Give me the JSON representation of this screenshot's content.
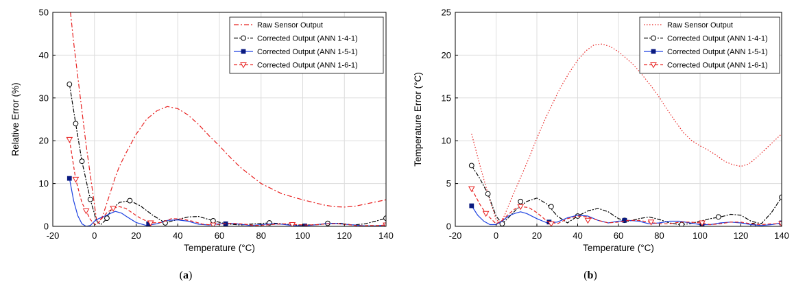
{
  "figure": {
    "panels": [
      {
        "caption_open": "(",
        "caption_letter": "a",
        "caption_close": ")"
      },
      {
        "caption_open": "(",
        "caption_letter": "b",
        "caption_close": ")"
      }
    ]
  },
  "chart_data": [
    {
      "type": "line",
      "xlabel": "Temperature (°C)",
      "ylabel": "Relative Error (%)",
      "xlim": [
        -20,
        140
      ],
      "ylim": [
        0,
        50
      ],
      "xticks": [
        -20,
        0,
        20,
        40,
        60,
        80,
        100,
        120,
        140
      ],
      "yticks": [
        0,
        10,
        20,
        30,
        40,
        50
      ],
      "grid": true,
      "legend_position": "top-right",
      "series": [
        {
          "name": "Raw Sensor Output",
          "color": "#e8201f",
          "dash": "7,3,2,3",
          "marker": "none",
          "x": [
            -11.5,
            -10,
            -8,
            -6,
            -4,
            -2,
            0,
            1,
            2,
            4,
            6,
            8,
            10,
            12,
            15,
            20,
            25,
            30,
            35,
            40,
            45,
            50,
            55,
            60,
            65,
            70,
            80,
            90,
            100,
            110,
            115,
            120,
            125,
            130,
            135,
            140
          ],
          "y": [
            50,
            43,
            35,
            27,
            19,
            12,
            5,
            1.5,
            0.8,
            2.5,
            5.5,
            8.5,
            11.5,
            14,
            17,
            21.5,
            25,
            27,
            28,
            27.5,
            26,
            23.8,
            21.2,
            18.8,
            16.2,
            13.8,
            10,
            7.6,
            6.2,
            5,
            4.6,
            4.5,
            4.7,
            5.2,
            5.7,
            6.2
          ],
          "markers_x": [],
          "markers_y": []
        },
        {
          "name": "Corrected Output (ANN 1-4-1)",
          "color": "#000000",
          "dash": "6,2,2,2",
          "marker": "circle",
          "x": [
            -12,
            -9,
            -6,
            -2,
            1,
            3,
            5,
            8,
            12,
            17,
            22,
            28,
            34,
            40,
            45,
            50,
            57,
            63,
            70,
            77,
            84,
            90,
            96,
            102,
            108,
            112,
            118,
            124,
            130,
            135,
            140
          ],
          "y": [
            33.2,
            24,
            15.2,
            6.3,
            1.2,
            0.4,
            1.3,
            3.8,
            5.6,
            6,
            4.8,
            2.6,
            0.8,
            1.6,
            2.2,
            2.3,
            1.3,
            0.6,
            0.3,
            0.6,
            0.8,
            0.6,
            0.3,
            0.3,
            0.4,
            0.7,
            0.7,
            0.3,
            0.6,
            1.2,
            1.9
          ],
          "markers_x": [
            -12,
            -9,
            -6,
            -2,
            6,
            17,
            34,
            57,
            84,
            112,
            140
          ],
          "markers_y": [
            33.2,
            24,
            15.2,
            6.3,
            1.9,
            6,
            0.8,
            1.3,
            0.8,
            0.7,
            1.9
          ]
        },
        {
          "name": "Corrected Output (ANN 1-5-1)",
          "color": "#1a3fe0",
          "dash": "",
          "marker": "square",
          "x": [
            -12,
            -10,
            -8,
            -6,
            -4,
            -2,
            0,
            2,
            5,
            8,
            10,
            13,
            16,
            20,
            25,
            30,
            35,
            40,
            45,
            50,
            55,
            60,
            65,
            70,
            75,
            80,
            85,
            90,
            95,
            100,
            105,
            110,
            115,
            120,
            125,
            130,
            135,
            140
          ],
          "y": [
            11.2,
            6,
            2.5,
            0.6,
            0,
            0.2,
            1.2,
            1.8,
            2.4,
            3.1,
            3.5,
            3.1,
            2.1,
            0.9,
            0.2,
            0.6,
            1.4,
            1.5,
            1.2,
            0.5,
            0.3,
            0.6,
            0.7,
            0.5,
            0.2,
            0.4,
            0.6,
            0.5,
            0.2,
            0.1,
            0.3,
            0.6,
            0.7,
            0.5,
            0.3,
            0.1,
            0.1,
            0.3
          ],
          "markers_x": [
            -12,
            26,
            63,
            101,
            140
          ],
          "markers_y": [
            11.2,
            0.6,
            0.6,
            0.1,
            0.3
          ]
        },
        {
          "name": "Corrected Output (ANN 1-6-1)",
          "color": "#e8201f",
          "dash": "5,3",
          "marker": "triangle",
          "x": [
            -12,
            -9,
            -6,
            -4,
            -2,
            0,
            1,
            3,
            6,
            9,
            12,
            15,
            18,
            22,
            27,
            32,
            37,
            42,
            47,
            52,
            57,
            62,
            67,
            72,
            77,
            82,
            87,
            92,
            97,
            102,
            107,
            112,
            117,
            122,
            127,
            132,
            137,
            140
          ],
          "y": [
            20.3,
            11,
            5.5,
            3.6,
            1.6,
            0.5,
            0.4,
            1.5,
            3.2,
            4.2,
            4.6,
            4.2,
            3.2,
            1.9,
            0.8,
            0.9,
            1.8,
            1.7,
            1.2,
            0.5,
            0.3,
            0.6,
            0.7,
            0.5,
            0.2,
            0.3,
            0.5,
            0.6,
            0.4,
            0.3,
            0.4,
            0.6,
            0.6,
            0.4,
            0.1,
            0.2,
            0.2,
            0.3
          ],
          "markers_x": [
            -12,
            -9,
            -4,
            9,
            27,
            57,
            95,
            140
          ],
          "markers_y": [
            20.3,
            11,
            3.6,
            4.2,
            0.8,
            0.3,
            0.4,
            0.3
          ]
        }
      ]
    },
    {
      "type": "line",
      "xlabel": "Temperature (°C)",
      "ylabel": "Temperature Error (°C)",
      "xlim": [
        -20,
        140
      ],
      "ylim": [
        0,
        25
      ],
      "xticks": [
        -20,
        0,
        20,
        40,
        60,
        80,
        100,
        120,
        140
      ],
      "yticks": [
        0,
        5,
        10,
        15,
        20,
        25
      ],
      "grid": true,
      "legend_position": "top-right",
      "series": [
        {
          "name": "Raw Sensor Output",
          "color": "#e8201f",
          "dash": "1.5,2.5",
          "marker": "none",
          "x": [
            -12,
            -8,
            -4,
            0,
            2,
            4,
            8,
            12,
            16,
            20,
            24,
            28,
            32,
            36,
            40,
            44,
            48,
            52,
            56,
            60,
            64,
            68,
            72,
            76,
            80,
            84,
            88,
            92,
            96,
            100,
            104,
            108,
            112,
            116,
            120,
            124,
            128,
            132,
            136,
            140
          ],
          "y": [
            10.8,
            7.2,
            3.8,
            0.8,
            0.4,
            1.2,
            3.5,
            5.7,
            7.9,
            10.3,
            12.5,
            14.5,
            16.4,
            18,
            19.4,
            20.5,
            21.2,
            21.3,
            21,
            20.4,
            19.6,
            18.7,
            17.6,
            16.4,
            15.1,
            13.6,
            12.2,
            10.9,
            10,
            9.4,
            8.9,
            8.3,
            7.6,
            7.2,
            7,
            7.3,
            8.1,
            9,
            9.9,
            10.8
          ],
          "markers_x": [],
          "markers_y": []
        },
        {
          "name": "Corrected Output (ANN 1-4-1)",
          "color": "#000000",
          "dash": "6,2,2,2",
          "marker": "circle",
          "x": [
            -12,
            -8,
            -4,
            0,
            3,
            6,
            10,
            15,
            20,
            25,
            30,
            35,
            40,
            45,
            50,
            55,
            60,
            65,
            70,
            75,
            80,
            85,
            90,
            95,
            100,
            105,
            110,
            115,
            120,
            125,
            130,
            135,
            140
          ],
          "y": [
            7.1,
            5.6,
            3.8,
            1.2,
            0.3,
            1,
            2,
            2.9,
            3.3,
            2.6,
            1.2,
            0.4,
            1.2,
            1.8,
            2.1,
            1.7,
            0.9,
            0.6,
            0.9,
            1.1,
            0.8,
            0.4,
            0.2,
            0.3,
            0.6,
            0.9,
            1.1,
            1.4,
            1.3,
            0.6,
            0.3,
            1.6,
            3.4
          ],
          "markers_x": [
            -12,
            -4,
            3,
            12,
            27,
            40,
            63,
            91,
            109,
            126,
            140
          ],
          "markers_y": [
            7.1,
            3.8,
            0.3,
            2.9,
            2.3,
            1.2,
            0.7,
            0.2,
            1.1,
            0.1,
            3.4
          ]
        },
        {
          "name": "Corrected Output (ANN 1-5-1)",
          "color": "#1a3fe0",
          "dash": "",
          "marker": "square",
          "x": [
            -12,
            -9,
            -6,
            -3,
            0,
            3,
            6,
            9,
            12,
            15,
            20,
            25,
            30,
            35,
            40,
            45,
            50,
            55,
            60,
            65,
            70,
            75,
            80,
            85,
            90,
            95,
            100,
            105,
            110,
            115,
            120,
            125,
            130,
            135,
            140
          ],
          "y": [
            2.4,
            1.3,
            0.6,
            0.2,
            0.2,
            0.6,
            1.2,
            1.5,
            1.7,
            1.5,
            0.9,
            0.4,
            0.5,
            1,
            1.3,
            1.2,
            0.7,
            0.4,
            0.6,
            0.7,
            0.6,
            0.3,
            0.4,
            0.6,
            0.6,
            0.4,
            0.2,
            0.2,
            0.4,
            0.5,
            0.4,
            0.2,
            0.1,
            0.2,
            0.4
          ],
          "markers_x": [
            -12,
            26,
            63,
            101,
            140
          ],
          "markers_y": [
            2.4,
            0.5,
            0.7,
            0.2,
            0.4
          ]
        },
        {
          "name": "Corrected Output (ANN 1-6-1)",
          "color": "#e8201f",
          "dash": "5,3",
          "marker": "triangle",
          "x": [
            -12,
            -8,
            -5,
            -3,
            0,
            3,
            6,
            9,
            12,
            16,
            20,
            25,
            30,
            35,
            40,
            45,
            50,
            55,
            60,
            65,
            70,
            75,
            80,
            85,
            90,
            95,
            100,
            105,
            110,
            115,
            120,
            125,
            130,
            135,
            140
          ],
          "y": [
            4.4,
            2.6,
            1.5,
            1,
            0.3,
            0.7,
            1.4,
            2,
            2.3,
            2.2,
            1.6,
            0.6,
            0.3,
            0.9,
            1.2,
            1.1,
            0.7,
            0.4,
            0.5,
            0.7,
            0.7,
            0.5,
            0.3,
            0.3,
            0.5,
            0.5,
            0.4,
            0.2,
            0.3,
            0.5,
            0.5,
            0.3,
            0.2,
            0.3,
            0.3
          ],
          "markers_x": [
            -12,
            -5,
            12,
            27,
            45,
            76,
            101,
            140
          ],
          "markers_y": [
            4.4,
            1.5,
            2.3,
            0.3,
            0.7,
            0.5,
            0.4,
            0.3
          ]
        }
      ]
    }
  ]
}
